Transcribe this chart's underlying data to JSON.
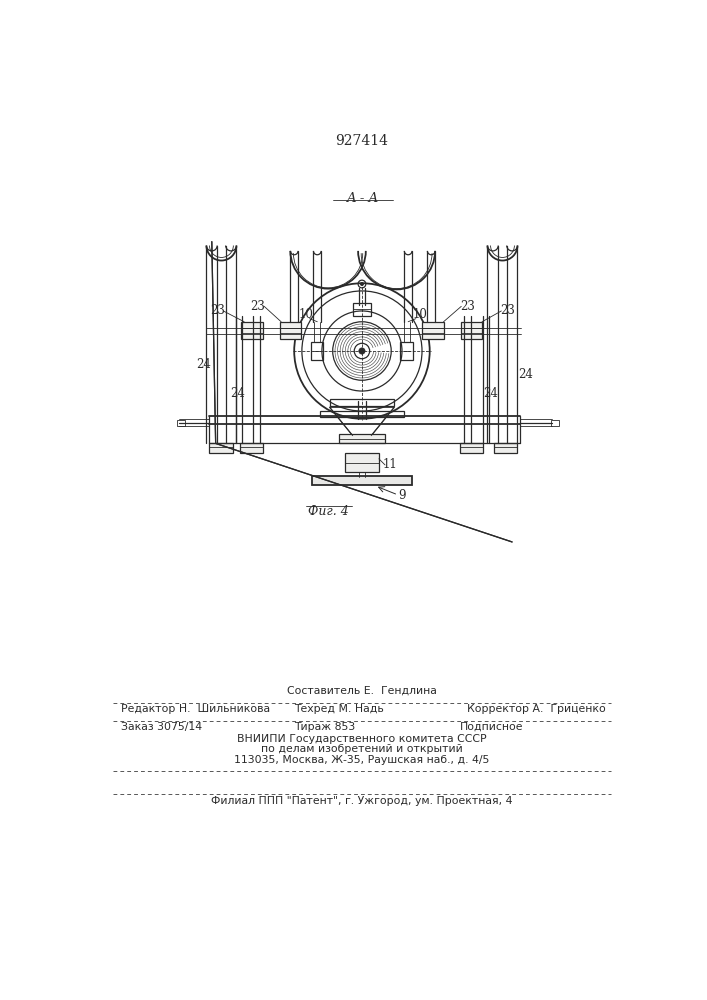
{
  "patent_number": "927414",
  "section_label": "A - A",
  "fig_label": "Фиг. 4",
  "footer": {
    "sestavitel": "Составитель Е.  Гендлина",
    "redaktor": "Редактор Н.  Шильникова",
    "tehred": "Техред М. Надь",
    "korrektor": "Корректор А.  Гриценко",
    "zakaz": "Заказ 3075/14",
    "tirazh": "Тираж 853",
    "podpisnoe": "Подписное",
    "vniipи": "ВНИИПИ Государственного комитета СССР",
    "po_delam": "по делам изобретений и открытий",
    "address": "113035, Москва, Ж-35, Раушская наб., д. 4/5",
    "filial": "Филиал ППП \"Патент\", г. Ужгород, ум. Проектная, 4"
  },
  "bg_color": "#ffffff",
  "line_color": "#2a2a2a"
}
